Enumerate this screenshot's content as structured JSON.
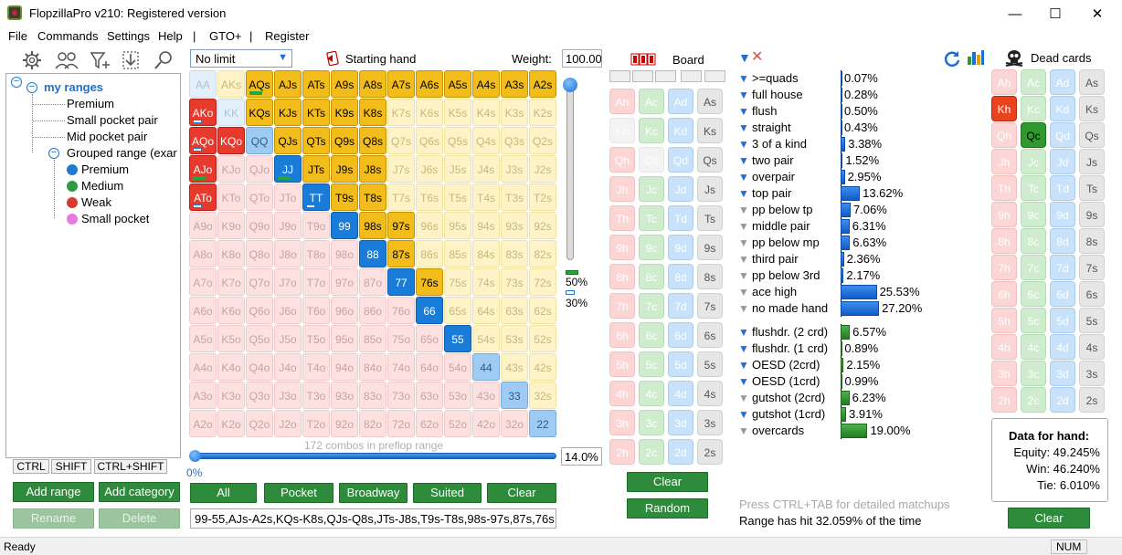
{
  "window": {
    "title": "FlopzillaPro v210: Registered version",
    "min": "—",
    "max": "☐",
    "close": "✕"
  },
  "menu": [
    "File",
    "Commands",
    "Settings",
    "Help",
    "|",
    "GTO+",
    "|",
    "Register"
  ],
  "toolbar": [
    "gear-icon",
    "users-icon",
    "filter-add-icon",
    "import-icon",
    "search-icon"
  ],
  "tree": {
    "root": "my ranges",
    "items": [
      "Premium",
      "Small pocket pair",
      "Mid pocket pair",
      "Grouped range (exar"
    ],
    "group": [
      {
        "label": "Premium",
        "color": "#1e7bd0"
      },
      {
        "label": "Medium",
        "color": "#2e9a3e"
      },
      {
        "label": "Weak",
        "color": "#d63b2e"
      },
      {
        "label": "Small pocket",
        "color": "#e87ae0"
      }
    ]
  },
  "keys": [
    "CTRL",
    "SHIFT",
    "CTRL+SHIFT"
  ],
  "left_buttons": {
    "add_range": "Add range",
    "add_category": "Add category",
    "rename": "Rename",
    "delete": "Delete"
  },
  "limit": "No limit",
  "starting_hand_label": "Starting hand",
  "weight_label": "Weight:",
  "weight_value": "100.00",
  "grid": {
    "ranks": [
      "A",
      "K",
      "Q",
      "J",
      "T",
      "9",
      "8",
      "7",
      "6",
      "5",
      "4",
      "3",
      "2"
    ],
    "selected": [
      "AQs",
      "AJs",
      "ATs",
      "A9s",
      "A8s",
      "A7s",
      "A6s",
      "A5s",
      "A4s",
      "A3s",
      "A2s",
      "KQs",
      "KJs",
      "KTs",
      "K9s",
      "K8s",
      "QJs",
      "QTs",
      "Q9s",
      "Q8s",
      "JTs",
      "J9s",
      "J8s",
      "T9s",
      "T8s",
      "98s",
      "97s",
      "87s",
      "76s",
      "AKo",
      "AQo",
      "AJo",
      "ATo",
      "KQo",
      "JJ",
      "TT",
      "99",
      "88",
      "77",
      "66",
      "55"
    ],
    "partial": [
      "QQ",
      "44",
      "33",
      "22"
    ],
    "green_marks": [
      "AQs",
      "AJo",
      "JJ"
    ],
    "blue_marks": [
      "AKo",
      "AQo",
      "ATo",
      "TT"
    ]
  },
  "vslider_labels": {
    "upper": "50%",
    "lower": "30%"
  },
  "combos_text": "172 combos in preflop range",
  "preflop_pct": "14.0%",
  "hslider_label": "0%",
  "grid_buttons": [
    "All",
    "Pocket",
    "Broadway",
    "Suited",
    "Clear"
  ],
  "range_text": "99-55,AJs-A2s,KQs-K8s,QJs-Q8s,JTs-J8s,T9s-T8s,98s-97s,87s,76s,A...",
  "board": {
    "label": "Board",
    "clear": "Clear",
    "random": "Random",
    "rows": [
      [
        "Ah",
        "Ac",
        "Ad",
        "As"
      ],
      [
        "Kh",
        "Kc",
        "Kd",
        "Ks"
      ],
      [
        "Qh",
        "Qc",
        "Qd",
        "Qs"
      ],
      [
        "Jh",
        "Jc",
        "Jd",
        "Js"
      ],
      [
        "Th",
        "Tc",
        "Td",
        "Ts"
      ],
      [
        "9h",
        "9c",
        "9d",
        "9s"
      ],
      [
        "8h",
        "8c",
        "8d",
        "8s"
      ],
      [
        "7h",
        "7c",
        "7d",
        "7s"
      ],
      [
        "6h",
        "6c",
        "6d",
        "6s"
      ],
      [
        "5h",
        "5c",
        "5d",
        "5s"
      ],
      [
        "4h",
        "4c",
        "4d",
        "4s"
      ],
      [
        "3h",
        "3c",
        "3d",
        "3s"
      ],
      [
        "2h",
        "2c",
        "2d",
        "2s"
      ]
    ],
    "blanked": [
      "Kh",
      "Qc"
    ]
  },
  "stats": [
    {
      "label": ">=quads",
      "pct": "0.07%",
      "val": 0.07,
      "on": true,
      "type": "made"
    },
    {
      "label": "full house",
      "pct": "0.28%",
      "val": 0.28,
      "on": true,
      "type": "made"
    },
    {
      "label": "flush",
      "pct": "0.50%",
      "val": 0.5,
      "on": true,
      "type": "made"
    },
    {
      "label": "straight",
      "pct": "0.43%",
      "val": 0.43,
      "on": true,
      "type": "made"
    },
    {
      "label": "3 of a kind",
      "pct": "3.38%",
      "val": 3.38,
      "on": true,
      "type": "made"
    },
    {
      "label": "two pair",
      "pct": "1.52%",
      "val": 1.52,
      "on": true,
      "type": "made"
    },
    {
      "label": "overpair",
      "pct": "2.95%",
      "val": 2.95,
      "on": true,
      "type": "made"
    },
    {
      "label": "top pair",
      "pct": "13.62%",
      "val": 13.62,
      "on": true,
      "type": "made"
    },
    {
      "label": "pp below tp",
      "pct": "7.06%",
      "val": 7.06,
      "on": false,
      "type": "made"
    },
    {
      "label": "middle pair",
      "pct": "6.31%",
      "val": 6.31,
      "on": false,
      "type": "made"
    },
    {
      "label": "pp below mp",
      "pct": "6.63%",
      "val": 6.63,
      "on": false,
      "type": "made"
    },
    {
      "label": "third pair",
      "pct": "2.36%",
      "val": 2.36,
      "on": false,
      "type": "made"
    },
    {
      "label": "pp below 3rd",
      "pct": "2.17%",
      "val": 2.17,
      "on": false,
      "type": "made"
    },
    {
      "label": "ace high",
      "pct": "25.53%",
      "val": 25.53,
      "on": false,
      "type": "made"
    },
    {
      "label": "no made hand",
      "pct": "27.20%",
      "val": 27.2,
      "on": false,
      "type": "made"
    },
    {
      "label": "flushdr. (2 crd)",
      "pct": "6.57%",
      "val": 6.57,
      "on": true,
      "type": "draw"
    },
    {
      "label": "flushdr. (1 crd)",
      "pct": "0.89%",
      "val": 0.89,
      "on": true,
      "type": "draw"
    },
    {
      "label": "OESD (2crd)",
      "pct": "2.15%",
      "val": 2.15,
      "on": true,
      "type": "draw"
    },
    {
      "label": "OESD (1crd)",
      "pct": "0.99%",
      "val": 0.99,
      "on": true,
      "type": "draw"
    },
    {
      "label": "gutshot (2crd)",
      "pct": "6.23%",
      "val": 6.23,
      "on": false,
      "type": "draw"
    },
    {
      "label": "gutshot (1crd)",
      "pct": "3.91%",
      "val": 3.91,
      "on": true,
      "type": "draw"
    },
    {
      "label": "overcards",
      "pct": "19.00%",
      "val": 19.0,
      "on": false,
      "type": "draw"
    }
  ],
  "matchup_hint": "Press CTRL+TAB for detailed matchups",
  "hit_text": "Range has hit 32.059% of the time",
  "dead": {
    "label": "Dead cards",
    "clear": "Clear",
    "selected": [
      "Kh",
      "Qc"
    ]
  },
  "equity": {
    "title": "Data for hand:",
    "equity": "Equity: 49.245%",
    "win": "Win: 46.240%",
    "tie": "Tie: 6.010%"
  },
  "status": {
    "left": "Ready",
    "num": "NUM"
  }
}
